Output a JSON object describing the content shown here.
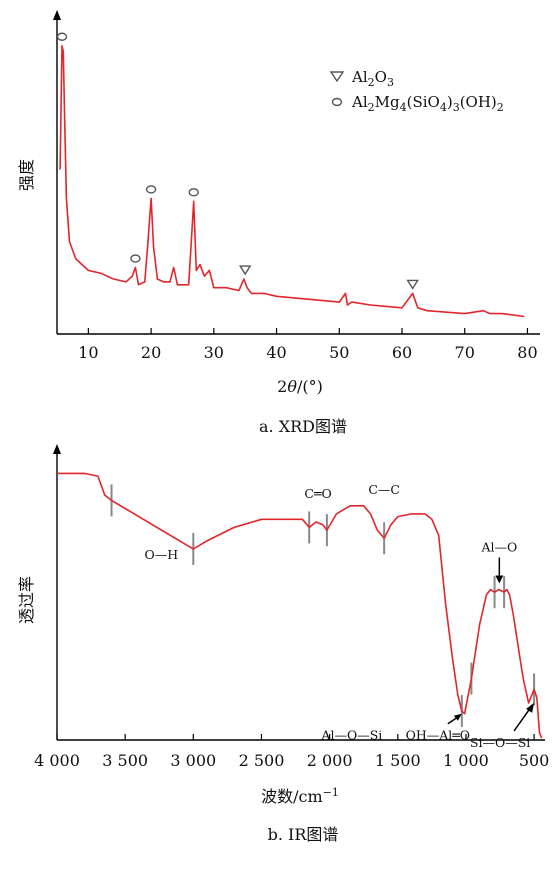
{
  "chart_data": [
    {
      "type": "line",
      "caption": "a. XRD图谱",
      "ylabel": "强度",
      "xlabel": "2θ/(°)",
      "xlim": [
        5,
        82
      ],
      "xticks": [
        10,
        20,
        30,
        40,
        50,
        60,
        70,
        80
      ],
      "ylim": [
        0,
        1
      ],
      "series_color": "#e3262b",
      "legend": {
        "position": "top-right",
        "entries": [
          {
            "symbol": "triangle",
            "label": "Al2O3"
          },
          {
            "symbol": "circle",
            "label": "Al2Mg4(SiO4)3(OH)2"
          }
        ]
      },
      "series": [
        {
          "x": [
            5.5,
            5.8,
            6.0,
            6.2,
            6.5,
            7,
            8,
            9,
            10,
            12,
            14,
            16,
            17,
            17.5,
            18,
            19,
            19.5,
            20,
            20.4,
            21,
            22,
            23,
            23.6,
            24.2,
            25,
            26,
            26.8,
            27.2,
            27.8,
            28.5,
            29.3,
            30,
            32,
            34,
            34.8,
            35.3,
            36,
            38,
            40,
            45,
            50,
            51,
            51.3,
            52,
            55,
            60,
            61.7,
            62.5,
            64,
            70,
            73,
            74,
            76,
            79.5
          ],
          "y": [
            0.55,
            0.98,
            0.96,
            0.75,
            0.45,
            0.3,
            0.24,
            0.22,
            0.2,
            0.19,
            0.17,
            0.16,
            0.18,
            0.21,
            0.15,
            0.16,
            0.3,
            0.45,
            0.28,
            0.17,
            0.16,
            0.16,
            0.21,
            0.15,
            0.15,
            0.15,
            0.44,
            0.2,
            0.22,
            0.18,
            0.2,
            0.14,
            0.14,
            0.13,
            0.17,
            0.14,
            0.12,
            0.12,
            0.11,
            0.1,
            0.09,
            0.12,
            0.08,
            0.09,
            0.08,
            0.07,
            0.12,
            0.07,
            0.06,
            0.05,
            0.06,
            0.05,
            0.05,
            0.04
          ]
        }
      ],
      "markers": [
        {
          "x": 5.8,
          "y": 0.98,
          "phase": "Al2Mg4(SiO4)3(OH)2"
        },
        {
          "x": 17.5,
          "y": 0.21,
          "phase": "Al2Mg4(SiO4)3(OH)2"
        },
        {
          "x": 20.0,
          "y": 0.45,
          "phase": "Al2Mg4(SiO4)3(OH)2"
        },
        {
          "x": 26.8,
          "y": 0.44,
          "phase": "Al2Mg4(SiO4)3(OH)2"
        },
        {
          "x": 35.0,
          "y": 0.17,
          "phase": "Al2O3"
        },
        {
          "x": 61.7,
          "y": 0.12,
          "phase": "Al2O3"
        }
      ]
    },
    {
      "type": "line",
      "caption": "b. IR图谱",
      "ylabel": "透过率",
      "xlabel": "波数/cm⁻¹",
      "xlim": [
        4000,
        420
      ],
      "xticks": [
        4000,
        3500,
        3000,
        2500,
        2000,
        1500,
        1000,
        500
      ],
      "xticklabels": [
        "4 000",
        "3 500",
        "3 000",
        "2 500",
        "2 000",
        "1 500",
        "1 000",
        "500"
      ],
      "ylim": [
        0,
        1
      ],
      "series_color": "#e3262b",
      "series": [
        {
          "x": [
            4000,
            3800,
            3700,
            3650,
            3600,
            3500,
            3300,
            3100,
            3000,
            2900,
            2700,
            2500,
            2300,
            2200,
            2150,
            2100,
            2050,
            2020,
            1950,
            1850,
            1750,
            1700,
            1650,
            1600,
            1550,
            1500,
            1400,
            1300,
            1250,
            1200,
            1150,
            1100,
            1060,
            1030,
            1010,
            960,
            900,
            850,
            820,
            790,
            760,
            720,
            700,
            680,
            650,
            620,
            580,
            540,
            500,
            480,
            460,
            445
          ],
          "y": [
            0.98,
            0.98,
            0.97,
            0.9,
            0.88,
            0.85,
            0.79,
            0.73,
            0.7,
            0.73,
            0.78,
            0.81,
            0.81,
            0.81,
            0.78,
            0.8,
            0.79,
            0.77,
            0.83,
            0.86,
            0.86,
            0.83,
            0.77,
            0.74,
            0.79,
            0.82,
            0.83,
            0.83,
            0.81,
            0.75,
            0.5,
            0.3,
            0.16,
            0.1,
            0.09,
            0.22,
            0.42,
            0.53,
            0.55,
            0.54,
            0.55,
            0.54,
            0.55,
            0.53,
            0.45,
            0.35,
            0.22,
            0.13,
            0.18,
            0.15,
            0.02,
            0.0
          ]
        }
      ],
      "band_marks": [
        3600,
        3000,
        2150,
        2020,
        1600,
        1030,
        960,
        790,
        720,
        500
      ],
      "annotations": [
        {
          "text": "O—H",
          "x": 3000
        },
        {
          "text": "C═O",
          "x": 2085
        },
        {
          "text": "C—C",
          "x": 1600
        },
        {
          "text": "Al—O",
          "x": 755
        },
        {
          "text": "Al—O—Si",
          "x": 1030
        },
        {
          "text": "OH—Al═O",
          "x": 1030
        },
        {
          "text": "Si—O—Si",
          "x": 500
        }
      ]
    }
  ]
}
